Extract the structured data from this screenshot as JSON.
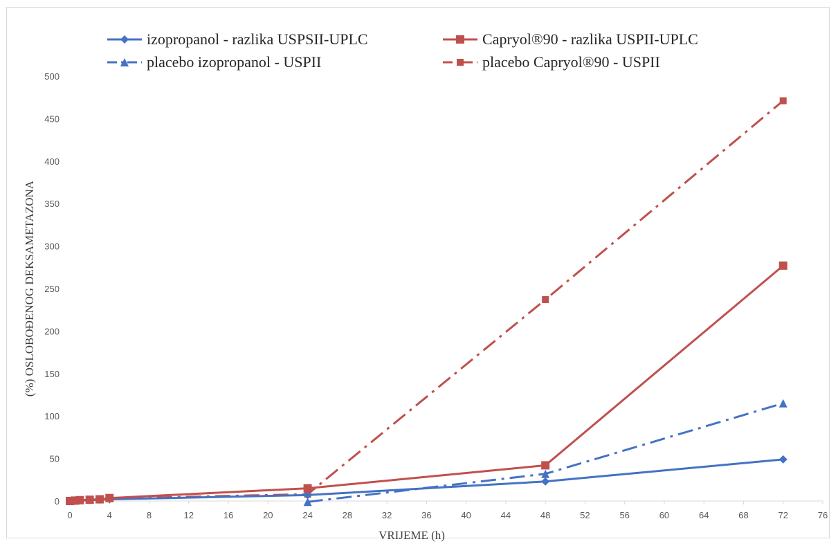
{
  "chart_data": {
    "type": "line",
    "title": "",
    "xlabel": "VRIJEME (h)",
    "ylabel": "(%) OSLOBOĐENOG DEKSAMETAZONA",
    "xlim": [
      0,
      76
    ],
    "ylim": [
      0,
      500
    ],
    "x_ticks": [
      0,
      4,
      8,
      12,
      16,
      20,
      24,
      28,
      32,
      36,
      40,
      44,
      48,
      52,
      56,
      60,
      64,
      68,
      72,
      76
    ],
    "y_ticks": [
      0,
      50,
      100,
      150,
      200,
      250,
      300,
      350,
      400,
      450,
      500
    ],
    "grid": false,
    "legend_position": "top",
    "series": [
      {
        "name": "izopropanol - razlika USPSII-UPLC",
        "color": "#4472c4",
        "line_style": "solid",
        "marker": "diamond",
        "x": [
          0,
          0.5,
          1,
          2,
          3,
          4,
          24,
          48,
          72
        ],
        "y": [
          0,
          0,
          0.5,
          1,
          1.5,
          2,
          7,
          23,
          49
        ]
      },
      {
        "name": "Capryol®90 - razlika USPII-UPLC",
        "color": "#c0504d",
        "line_style": "solid",
        "marker": "square",
        "x": [
          0,
          0.5,
          1,
          2,
          3,
          4,
          24,
          48,
          72
        ],
        "y": [
          0,
          0.5,
          1,
          1.5,
          2,
          3.5,
          15,
          42,
          277
        ]
      },
      {
        "name": "placebo izopropanol - USPII",
        "color": "#4472c4",
        "line_style": "dashdot",
        "marker": "triangle",
        "x": [
          24,
          48,
          72
        ],
        "y": [
          -1,
          32,
          115
        ]
      },
      {
        "name": "placebo Capryol®90 - USPII",
        "color": "#c0504d",
        "line_style": "dashdot",
        "marker": "square-small",
        "x": [
          0,
          0.5,
          1,
          2,
          3,
          4,
          24,
          48,
          72
        ],
        "y": [
          0,
          0.5,
          1,
          1.5,
          2,
          3,
          8,
          237,
          471
        ]
      }
    ]
  }
}
